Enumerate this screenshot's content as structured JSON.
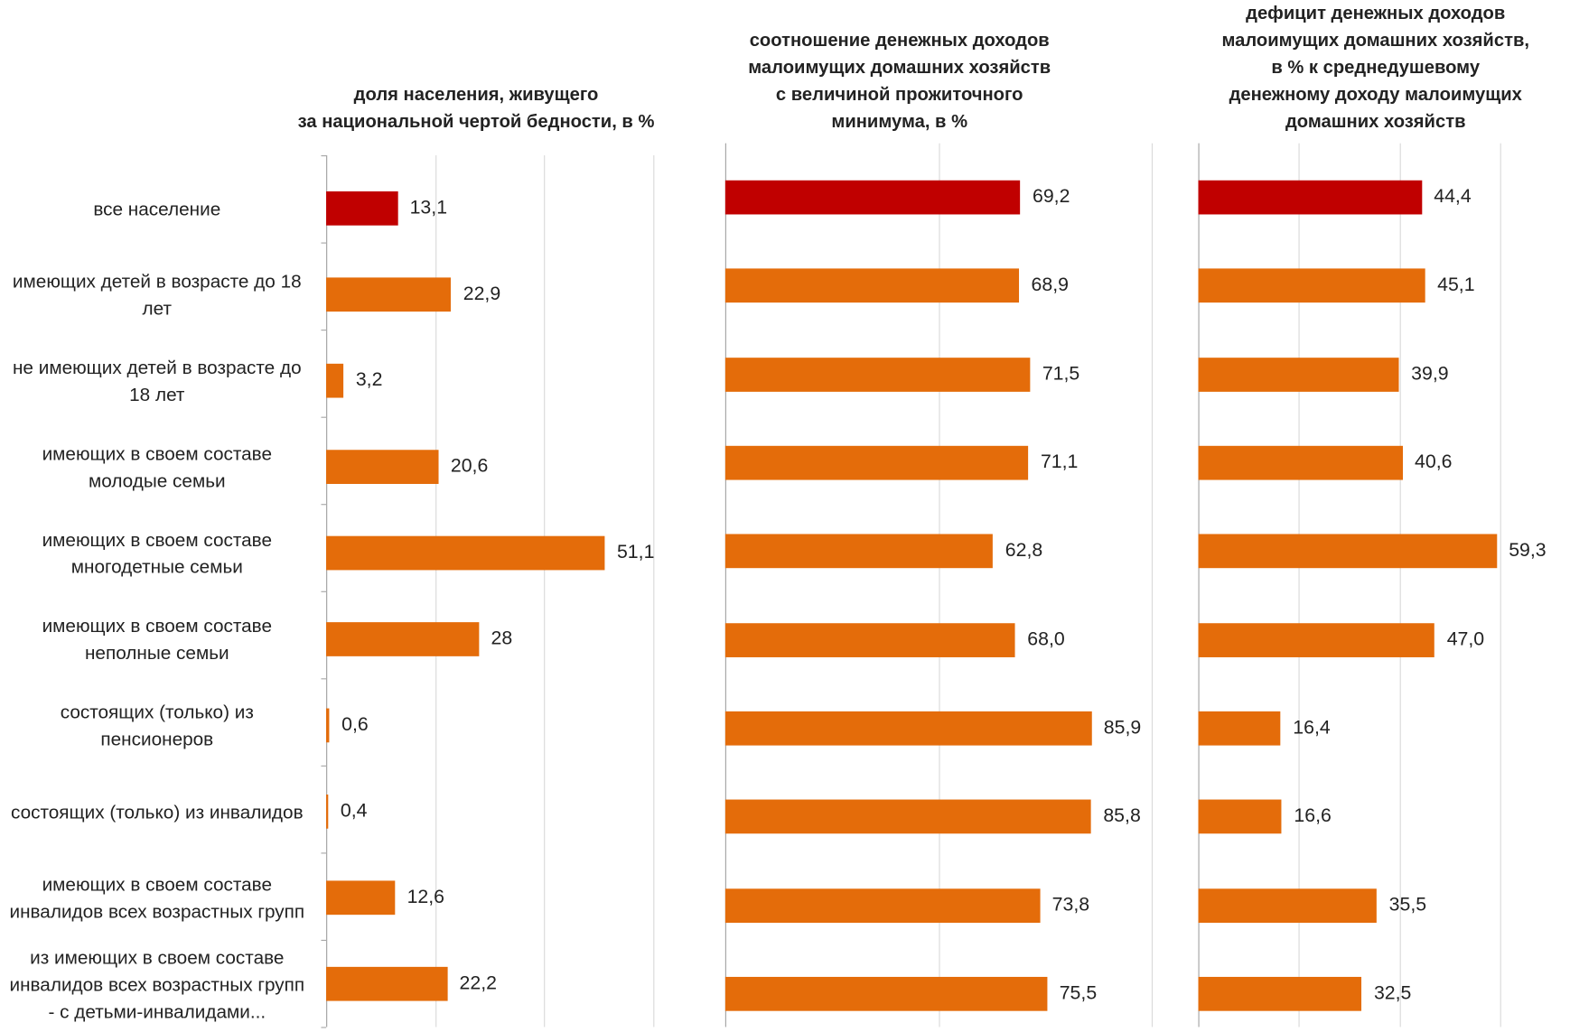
{
  "chart_data": [
    {
      "type": "barh",
      "title": [
        "доля населения, живущего",
        "за национальной чертой бедности, в %"
      ],
      "categories": [
        "все население",
        "имеющих детей в возрасте до 18 лет",
        "не имеющих детей в возрасте до 18 лет",
        "имеющих в своем составе молодые семьи",
        "имеющих в своем составе многодетные семьи",
        "имеющих в своем составе неполные семьи",
        "состоящих (только) из пенсионеров",
        "состоящих (только) из инвалидов",
        "имеющих в своем составе инвалидов всех возрастных групп",
        "из имеющих в своем составе инвалидов всех возрастных групп - с детьми-инвалидами..."
      ],
      "values": [
        13.1,
        22.9,
        3.2,
        20.6,
        51.1,
        28,
        0.6,
        0.4,
        12.6,
        22.2
      ],
      "value_labels": [
        "13,1",
        "22,9",
        "3,2",
        "20,6",
        "51,1",
        "28",
        "0,6",
        "0,4",
        "12,6",
        "22,2"
      ],
      "colors": [
        "#c00000",
        "#e46c0a",
        "#e46c0a",
        "#e46c0a",
        "#e46c0a",
        "#e46c0a",
        "#e46c0a",
        "#e46c0a",
        "#e46c0a",
        "#e46c0a"
      ],
      "xlim": [
        0,
        60
      ],
      "xticks": [
        0,
        20,
        40,
        60
      ],
      "grid": true
    },
    {
      "type": "barh",
      "title": [
        "соотношение денежных доходов",
        "малоимущих домашних хозяйств",
        "с величиной прожиточного",
        "минимума, в %"
      ],
      "values": [
        69.2,
        68.9,
        71.5,
        71.1,
        62.8,
        68.0,
        85.9,
        85.8,
        73.8,
        75.5
      ],
      "value_labels": [
        "69,2",
        "68,9",
        "71,5",
        "71,1",
        "62,8",
        "68,0",
        "85,9",
        "85,8",
        "73,8",
        "75,5"
      ],
      "colors": [
        "#c00000",
        "#e46c0a",
        "#e46c0a",
        "#e46c0a",
        "#e46c0a",
        "#e46c0a",
        "#e46c0a",
        "#e46c0a",
        "#e46c0a",
        "#e46c0a"
      ],
      "xlim": [
        0,
        100
      ],
      "xticks": [
        0,
        50,
        100
      ],
      "grid": true
    },
    {
      "type": "barh",
      "title": [
        "дефицит денежных доходов",
        "малоимущих домашних хозяйств,",
        "в % к среднедушевому",
        "денежному доходу малоимущих",
        "домашних хозяйств"
      ],
      "values": [
        44.4,
        45.1,
        39.9,
        40.6,
        59.3,
        47.0,
        16.4,
        16.6,
        35.5,
        32.5
      ],
      "value_labels": [
        "44,4",
        "45,1",
        "39,9",
        "40,6",
        "59,3",
        "47,0",
        "16,4",
        "16,6",
        "35,5",
        "32,5"
      ],
      "colors": [
        "#c00000",
        "#e46c0a",
        "#e46c0a",
        "#e46c0a",
        "#e46c0a",
        "#e46c0a",
        "#e46c0a",
        "#e46c0a",
        "#e46c0a",
        "#e46c0a"
      ],
      "xlim": [
        0,
        60
      ],
      "xticks": [
        0,
        20,
        40,
        60
      ],
      "grid": true
    }
  ]
}
